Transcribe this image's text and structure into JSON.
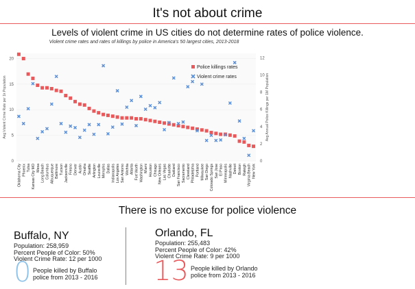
{
  "title": "It's not about crime",
  "subtitle": "Levels of violent crime in US cities do not determine rates of police violence.",
  "caption": "Violent crime rates and rates of killings by police in America's 50 largest cities, 2013-2018",
  "section_title": "There is no excuse for police violence",
  "colors": {
    "accent": "#e8595c",
    "police": "#e8595c",
    "crime": "#5b8fd6",
    "zero": "#8fc3ea"
  },
  "chart_data": {
    "type": "scatter",
    "title": "Violent crime rates and rates of killings by police in America's 50 largest cities, 2013-2018",
    "ylabel": "Avg Violent Crime Rate per 1k Population",
    "y2label": "Avg Annual Police Killings per 1M Population",
    "ylim": [
      0,
      21
    ],
    "y2lim": [
      0,
      12.5
    ],
    "yticks": [
      0,
      5,
      10,
      15,
      20
    ],
    "y2ticks": [
      0,
      2,
      4,
      6,
      8,
      10,
      12
    ],
    "legend_position": "top-right",
    "categories": [
      "Oklahoma City",
      "Phoenix",
      "Tulsa",
      "Kansas City MO",
      "Mesa",
      "Long Beach",
      "Columbus",
      "Albuquerque",
      "Baltimore",
      "Tucson",
      "Jacksonville",
      "Fresno",
      "Denver",
      "Austin",
      "Omaha",
      "Seattle",
      "Arlington",
      "Louisville",
      "Memphis",
      "Dallas",
      "Indianapolis",
      "Los Angeles",
      "San Antonio",
      "Wichita",
      "Atlanta",
      "Fort Worth",
      "Washington",
      "Miami",
      "Houston",
      "Chicago",
      "New Orleans",
      "Las Vegas",
      "Charlotte",
      "Oakland",
      "San Francisco",
      "Sacramento",
      "Cleveland",
      "Philadelphia",
      "Portland",
      "Milwaukee",
      "San Diego",
      "Colorado Springs",
      "San Jose",
      "El Paso",
      "Minneapolis",
      "Nashville",
      "Detroit",
      "Boston",
      "Raleigh",
      "Virginia Beach",
      "New York"
    ],
    "series": [
      {
        "name": "Police killings rates",
        "axis": "right",
        "marker": "square",
        "values": [
          12.4,
          11.9,
          10.1,
          9.6,
          8.8,
          8.5,
          8.5,
          8.4,
          8.2,
          8.1,
          7.6,
          7.3,
          6.9,
          6.6,
          6.5,
          6.1,
          5.8,
          5.6,
          5.4,
          5.3,
          5.2,
          5.1,
          5.0,
          5.0,
          5.0,
          4.9,
          4.9,
          4.8,
          4.7,
          4.6,
          4.5,
          4.4,
          4.3,
          4.2,
          4.1,
          4.0,
          3.9,
          3.8,
          3.7,
          3.6,
          3.5,
          3.3,
          3.2,
          3.1,
          3.1,
          3.0,
          2.9,
          2.3,
          2.2,
          1.8,
          1.7
        ]
      },
      {
        "name": "Violent crime rates",
        "axis": "left",
        "marker": "x",
        "values": [
          8.7,
          7.3,
          10.2,
          15.1,
          4.4,
          5.7,
          6.3,
          11.1,
          16.5,
          7.3,
          5.6,
          6.8,
          6.5,
          4.6,
          6.0,
          7.1,
          5.2,
          7.1,
          18.6,
          5.3,
          6.6,
          13.7,
          7.2,
          10.5,
          11.8,
          6.9,
          12.6,
          10.1,
          10.8,
          10.4,
          11.4,
          6.1,
          7.5,
          16.2,
          7.3,
          7.6,
          14.5,
          15.5,
          5.9,
          15.0,
          4.0,
          5.0,
          4.0,
          4.1,
          5.1,
          11.3,
          19.2,
          7.8,
          4.4,
          1.1,
          5.9
        ]
      }
    ]
  },
  "cards": [
    {
      "name": "Buffalo, NY",
      "population": "Population: 258,959",
      "poc": "Percent People of Color: 50%",
      "crime": "Violent Crime Rate: 12 per 1000",
      "count": "0",
      "killed_line1": "People killed by Buffalo",
      "killed_line2": "police from 2013 - 2016"
    },
    {
      "name": "Orlando, FL",
      "population": "Population: 255,483",
      "poc": "Percent People of Color: 42%",
      "crime": "Violent Crime Rate: 9 per 1000",
      "count": "13",
      "killed_line1": "People killed by Orlando",
      "killed_line2": "police from 2013 - 2016"
    }
  ]
}
